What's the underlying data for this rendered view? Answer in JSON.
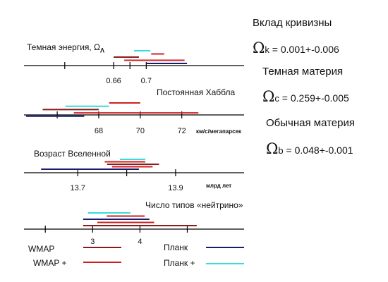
{
  "panels": {
    "dark_energy": {
      "title": "Темная энергия, Ω",
      "title_sub": "Λ",
      "ticks": [
        0.6,
        0.66,
        0.68,
        0.7
      ],
      "tick_labels": [
        "0.66",
        "0.7"
      ],
      "unit": "",
      "scale": [
        0.55,
        0.82
      ],
      "intervals": [
        {
          "series": "Планк +",
          "low": 0.685,
          "high": 0.705
        },
        {
          "series": "WMAP +",
          "low": 0.706,
          "high": 0.722
        },
        {
          "series": "WMAP",
          "low": 0.66,
          "high": 0.691
        },
        {
          "series": "WMAP +",
          "low": 0.673,
          "high": 0.747
        },
        {
          "series": "Планк",
          "low": 0.7,
          "high": 0.75
        }
      ]
    },
    "hubble": {
      "title": "Постоянная Хаббла",
      "ticks": [
        66,
        68,
        70,
        72
      ],
      "tick_labels": [
        "68",
        "70",
        "72"
      ],
      "unit": "км/с/мегапарсек",
      "scale": [
        64.4,
        75.0
      ],
      "intervals": [
        {
          "series": "WMAP +",
          "low": 68.5,
          "high": 70.0
        },
        {
          "series": "Планк +",
          "low": 66.4,
          "high": 68.5
        },
        {
          "series": "WMAP",
          "low": 65.3,
          "high": 68.0
        },
        {
          "series": "WMAP +",
          "low": 66.8,
          "high": 72.8
        },
        {
          "series": "Планк",
          "low": 64.5,
          "high": 67.3
        }
      ]
    },
    "age": {
      "title": "Возраст Вселенной",
      "ticks": [
        13.7,
        13.8,
        13.9
      ],
      "tick_labels": [
        "13.7",
        "13.9"
      ],
      "unit": "млрд лет",
      "scale": [
        13.59,
        14.04
      ],
      "intervals": [
        {
          "series": "Планк +",
          "low": 13.786,
          "high": 13.838
        },
        {
          "series": "WMAP +",
          "low": 13.755,
          "high": 13.838
        },
        {
          "series": "WMAP",
          "low": 13.76,
          "high": 13.866
        },
        {
          "series": "WMAP +",
          "low": 13.77,
          "high": 13.853
        },
        {
          "series": "Планк",
          "low": 13.625,
          "high": 13.825
        }
      ]
    },
    "neutrino": {
      "title": "Число типов «нейтрино»",
      "ticks": [
        2,
        3,
        4,
        5
      ],
      "tick_labels": [
        "3",
        "4"
      ],
      "unit": "",
      "scale": [
        1.55,
        6.2
      ],
      "intervals": [
        {
          "series": "Планк +",
          "low": 2.9,
          "high": 3.8
        },
        {
          "series": "WMAP +",
          "low": 3.3,
          "high": 4.1
        },
        {
          "series": "Планк",
          "low": 2.8,
          "high": 4.2
        },
        {
          "series": "WMAP +",
          "low": 3.1,
          "high": 4.3
        },
        {
          "series": "WMAP",
          "low": 2.8,
          "high": 5.2
        }
      ]
    }
  },
  "legend": {
    "wmap": "WMAP",
    "wmap_plus": "WMAP +",
    "planck": "Планк",
    "planck_plus": "Планк +"
  },
  "series_colors": {
    "WMAP": "#8b1a1a",
    "WMAP +": "#cc2222",
    "Планк": "#1a1a6e",
    "Планк +": "#33dddd"
  },
  "side": {
    "curvature_title": "Вклад кривизны",
    "curvature_symbol": "Ω",
    "curvature_sub": "k",
    "curvature_value": " = 0.001+-0.006",
    "dark_matter_title": "Темная материя",
    "dark_matter_symbol": "Ω",
    "dark_matter_sub": "c",
    "dark_matter_value": " = 0.259+-0.005",
    "ordinary_title": "Обычная материя",
    "ordinary_symbol": "Ω",
    "ordinary_sub": "b",
    "ordinary_value": " = 0.048+-0.001"
  }
}
